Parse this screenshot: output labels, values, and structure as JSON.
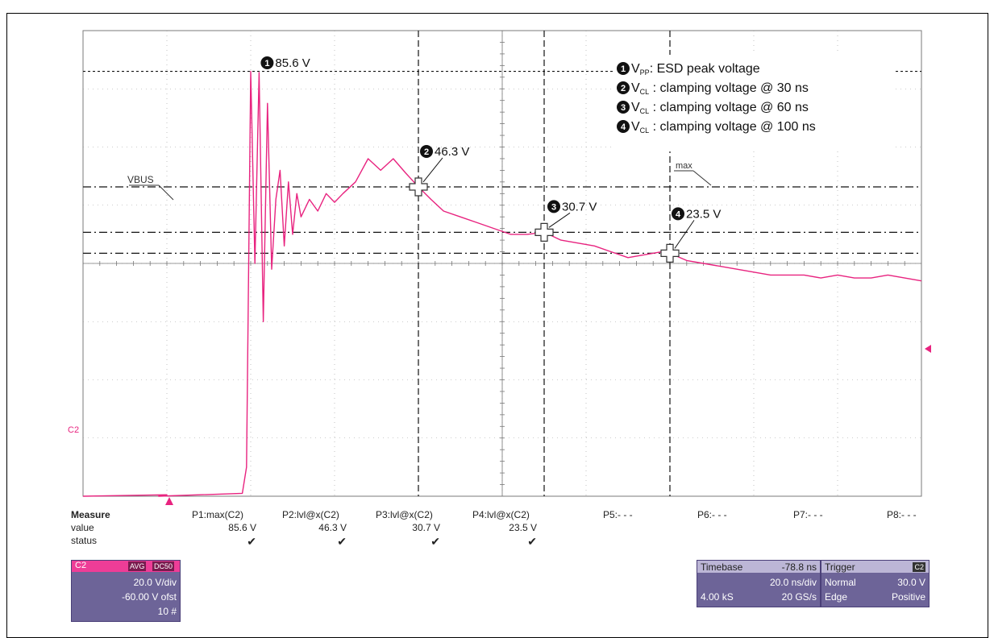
{
  "legend": {
    "items": [
      {
        "num": "1",
        "main": "V",
        "sub": "PP",
        "text": ": ESD peak voltage"
      },
      {
        "num": "2",
        "main": "V",
        "sub": "CL",
        "text": " : clamping voltage @ 30 ns"
      },
      {
        "num": "3",
        "main": "V",
        "sub": "CL",
        "text": " : clamping voltage @ 60 ns"
      },
      {
        "num": "4",
        "main": "V",
        "sub": "CL",
        "text": " : clamping voltage @ 100 ns"
      }
    ]
  },
  "labels": {
    "vbus": "VBUS",
    "max": "max",
    "channel": "C2"
  },
  "markers": [
    {
      "num": "1",
      "value": "85.6 V"
    },
    {
      "num": "2",
      "value": "46.3 V"
    },
    {
      "num": "3",
      "value": "30.7 V"
    },
    {
      "num": "4",
      "value": "23.5 V"
    }
  ],
  "measure": {
    "head": "Measure",
    "row_value": "value",
    "row_status": "status",
    "columns": [
      {
        "param": "P1:max(C2)",
        "value": "85.6 V",
        "status": "✔"
      },
      {
        "param": "P2:lvl@x(C2)",
        "value": "46.3 V",
        "status": "✔"
      },
      {
        "param": "P3:lvl@x(C2)",
        "value": "30.7 V",
        "status": "✔"
      },
      {
        "param": "P4:lvl@x(C2)",
        "value": "23.5 V",
        "status": "✔"
      },
      {
        "param": "P5:- - -",
        "value": "",
        "status": ""
      },
      {
        "param": "P6:- - -",
        "value": "",
        "status": ""
      },
      {
        "param": "P7:- - -",
        "value": "",
        "status": ""
      },
      {
        "param": "P8:- - -",
        "value": "",
        "status": ""
      }
    ]
  },
  "channel_panel": {
    "name": "C2",
    "tag1": "AVG",
    "tag2": "DC50",
    "vdiv": "20.0 V/div",
    "offset": "-60.00 V ofst",
    "count": "10 #"
  },
  "timebase_panel": {
    "label": "Timebase",
    "delay": "-78.8 ns",
    "tdiv": "20.0 ns/div",
    "samples": "4.00 kS",
    "rate": "20 GS/s"
  },
  "trigger_panel": {
    "label": "Trigger",
    "channel": "C2",
    "mode": "Normal",
    "level": "30.0 V",
    "type": "Edge",
    "slope": "Positive"
  },
  "colors": {
    "trace": "#e8237f",
    "grid": "#9a9a9a",
    "panel": "#6d6498",
    "panel_hdr": "#ee3d97"
  },
  "chart_data": {
    "type": "line",
    "title": "",
    "xlabel": "",
    "ylabel": "",
    "x_unit": "ns",
    "y_unit": "V",
    "xlim": [
      -80,
      120
    ],
    "ylim": [
      -60,
      100
    ],
    "grid": true,
    "series": [
      {
        "name": "C2",
        "x": [
          -80,
          -60,
          -62,
          -42,
          -41,
          -40,
          -39,
          -38,
          -37,
          -36,
          -35,
          -34,
          -33,
          -32,
          -31,
          -30,
          -29,
          -28,
          -26,
          -24,
          -22,
          -20,
          -18,
          -15,
          -12,
          -9,
          -6,
          -3,
          0,
          3,
          6,
          10,
          14,
          18,
          22,
          26,
          30,
          34,
          38,
          42,
          46,
          50,
          54,
          58,
          60,
          64,
          68,
          72,
          76,
          80,
          84,
          88,
          92,
          96,
          100,
          104,
          108,
          112,
          116,
          120
        ],
        "y": [
          -60,
          -59.5,
          -60,
          -59,
          -50,
          86,
          20,
          85.6,
          0,
          75,
          18,
          42,
          52,
          26,
          48,
          30,
          44,
          36,
          42,
          38,
          44,
          41,
          44,
          48,
          56,
          52,
          56,
          51,
          46.3,
          42,
          38,
          36,
          34,
          32,
          30,
          30,
          30.7,
          28,
          27,
          26,
          24,
          22,
          23,
          24,
          23.5,
          21,
          20,
          19,
          18,
          17,
          16,
          16,
          16,
          15,
          16,
          15,
          15,
          16,
          15,
          14
        ]
      }
    ],
    "annotations": [
      {
        "label": "1",
        "x": -38,
        "y": 85.6,
        "text": "85.6 V"
      },
      {
        "label": "2",
        "x": 0,
        "y": 46.3,
        "text": "46.3 V"
      },
      {
        "label": "3",
        "x": 30,
        "y": 30.7,
        "text": "30.7 V"
      },
      {
        "label": "4",
        "x": 60,
        "y": 23.5,
        "text": "23.5 V"
      }
    ],
    "cursor_levels": [
      46.3,
      30.7,
      23.5
    ]
  }
}
